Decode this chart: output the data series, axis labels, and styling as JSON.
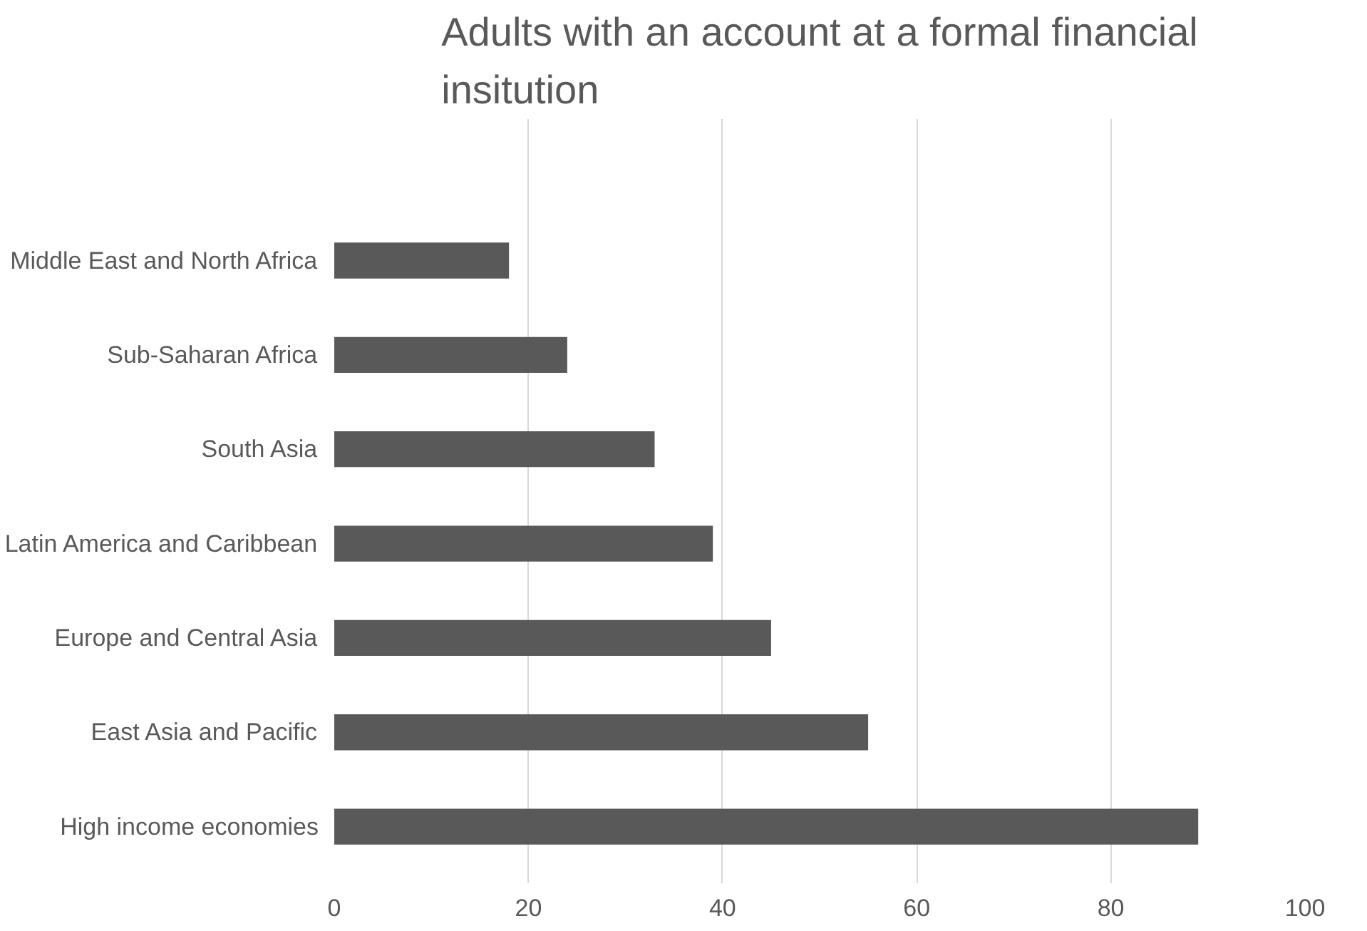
{
  "chart_data": {
    "type": "bar",
    "orientation": "horizontal",
    "title": "Adults with an account at a formal financial insitution",
    "categories": [
      "Middle East and North Africa",
      "Sub-Saharan Africa",
      "South Asia",
      "Latin America and Caribbean",
      "Europe and Central Asia",
      "East Asia and Pacific",
      "High income economies"
    ],
    "values": [
      18,
      24,
      33,
      39,
      45,
      55,
      89
    ],
    "color": "#595959",
    "xlim": [
      0,
      100
    ],
    "xticks": [
      0,
      20,
      40,
      60,
      80,
      100
    ],
    "grid": "x"
  }
}
